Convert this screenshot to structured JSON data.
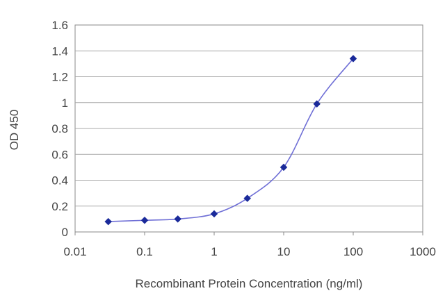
{
  "chart_data": {
    "type": "line",
    "title": "",
    "xlabel": "Recombinant Protein Concentration (ng/ml)",
    "ylabel": "OD 450",
    "x_scale": "log",
    "xlim": [
      0.01,
      1000
    ],
    "ylim": [
      0,
      1.6
    ],
    "x_ticks": [
      0.01,
      0.1,
      1,
      10,
      100,
      1000
    ],
    "x_tick_labels": [
      "0.01",
      "0.1",
      "1",
      "10",
      "100",
      "1000"
    ],
    "y_ticks": [
      0,
      0.2,
      0.4,
      0.6,
      0.8,
      1,
      1.2,
      1.4,
      1.6
    ],
    "y_tick_labels": [
      "0",
      "0.2",
      "0.4",
      "0.6",
      "0.8",
      "1",
      "1.2",
      "1.4",
      "1.6"
    ],
    "grid": "horizontal",
    "legend": "none",
    "series": [
      {
        "x": [
          0.03,
          0.1,
          0.3,
          1,
          3,
          10,
          30,
          100
        ],
        "y": [
          0.08,
          0.09,
          0.1,
          0.14,
          0.26,
          0.5,
          0.99,
          1.34
        ]
      }
    ],
    "colors": {
      "line": "#6f6fd6",
      "marker": "#1a2a9a",
      "grid": "#a9a9a9",
      "axis": "#888888",
      "plot_background": "#ffffff"
    }
  }
}
